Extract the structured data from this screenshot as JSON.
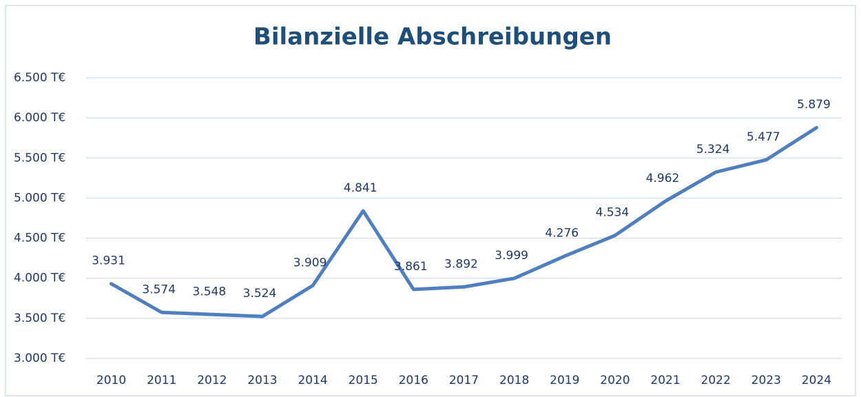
{
  "chart_data": {
    "type": "line",
    "title": "Bilanzielle Abschreibungen",
    "categories": [
      "2010",
      "2011",
      "2012",
      "2013",
      "2014",
      "2015",
      "2016",
      "2017",
      "2018",
      "2019",
      "2020",
      "2021",
      "2022",
      "2023",
      "2024"
    ],
    "series": [
      {
        "name": "Abschreibungen",
        "color": "#4f7fbf",
        "values": [
          3931,
          3574,
          3548,
          3524,
          3909,
          4841,
          3861,
          3892,
          3999,
          4276,
          4534,
          4962,
          5324,
          5477,
          5879
        ],
        "value_labels": [
          "3.931",
          "3.574",
          "3.548",
          "3.524",
          "3.909",
          "4.841",
          "3.861",
          "3.892",
          "3.999",
          "4.276",
          "4.534",
          "4.962",
          "5.324",
          "5.477",
          "5.879"
        ]
      }
    ],
    "ylim": [
      3000,
      6500
    ],
    "yticks": [
      {
        "value": 3000,
        "label": "3.000 T€"
      },
      {
        "value": 3500,
        "label": "3.500 T€"
      },
      {
        "value": 4000,
        "label": "4.000 T€"
      },
      {
        "value": 4500,
        "label": "4.500 T€"
      },
      {
        "value": 5000,
        "label": "5.000 T€"
      },
      {
        "value": 5500,
        "label": "5.500 T€"
      },
      {
        "value": 6000,
        "label": "6.000 T€"
      },
      {
        "value": 6500,
        "label": "6.500 T€"
      }
    ],
    "grid": true
  }
}
